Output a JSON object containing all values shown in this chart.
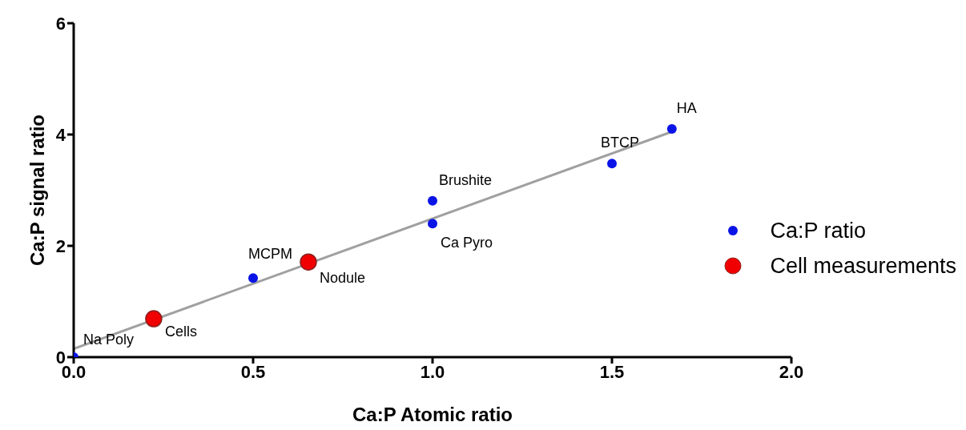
{
  "chart_data": {
    "type": "scatter",
    "xlabel": "Ca:P Atomic ratio",
    "ylabel": "Ca:P signal ratio",
    "series": [
      {
        "name": "Ca:P ratio",
        "type": "scatter",
        "color": "#0a14e6",
        "x": [
          0,
          0.5,
          1.0,
          1.0,
          1.5,
          1.667
        ],
        "values": [
          0,
          1.42,
          2.81,
          2.4,
          3.48,
          4.1
        ]
      },
      {
        "type": "line",
        "marker": "none",
        "color": "#a0a0a0",
        "x": [
          0,
          1.667
        ],
        "values": [
          0.15,
          4.05
        ]
      },
      {
        "name": "Cell measurements",
        "type": "scatter",
        "color": "#f00000",
        "x": [
          0.223,
          0.654
        ],
        "values": [
          0.69,
          1.71
        ]
      }
    ],
    "annotations": [
      {
        "text": "Na Poly",
        "x": 0,
        "y": 0
      },
      {
        "text": "MCPM",
        "x": 0.5,
        "y": 1.42
      },
      {
        "text": "Brushite",
        "x": 1.0,
        "y": 2.81
      },
      {
        "text": "Ca Pyro",
        "x": 1.0,
        "y": 2.4
      },
      {
        "text": "BTCP",
        "x": 1.5,
        "y": 3.48
      },
      {
        "text": "HA",
        "x": 1.667,
        "y": 4.1
      },
      {
        "text": "Cells",
        "x": 0.223,
        "y": 0.69
      },
      {
        "text": "Nodule",
        "x": 0.654,
        "y": 1.71
      }
    ],
    "xlim": [
      0,
      2
    ],
    "xticks": [
      {
        "value": 0,
        "label": "0.0"
      },
      {
        "value": 0.5,
        "label": "0.5"
      },
      {
        "value": 1,
        "label": "1.0"
      },
      {
        "value": 1.5,
        "label": "1.5"
      },
      {
        "value": 2,
        "label": "2.0"
      }
    ],
    "ylim": [
      0,
      6
    ],
    "yticks": [
      0,
      2,
      4,
      6
    ],
    "grid": false,
    "legend": "right",
    "marker": "circle",
    "line_style": "solid"
  }
}
